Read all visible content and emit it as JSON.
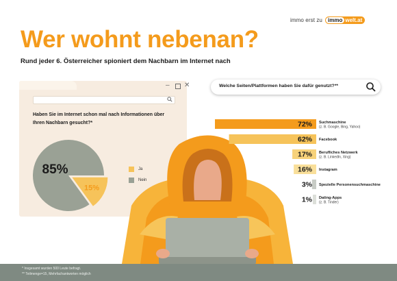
{
  "brand": {
    "prefix": "immo erst zu",
    "mark": "immo",
    "name": "welt.at"
  },
  "title": "Wer wohnt nebenan?",
  "subtitle": "Rund jeder 6. Österreicher spioniert dem Nachbarn im Internet nach",
  "browser": {
    "question": "Haben Sie im Internet schon mal nach Informationen über Ihren Nachbarn gesucht?*",
    "controls": {
      "minimize": "–",
      "close": "✕"
    },
    "search_icon": "search-icon"
  },
  "search": {
    "query": "Welche Seiten/Plattformen haben Sie dafür genutzt?**",
    "icon": "search-icon"
  },
  "footnotes": [
    "* Insgesamt wurden 500 Leute befragt.",
    "** Teilmenge=15, Mehrfachantworten möglich"
  ],
  "colors": {
    "accent": "#f49b1c",
    "accent_light": "#f6c35a",
    "grey": "#9aa195",
    "grey_dark": "#7f8a82",
    "skin": "#e9a98a"
  },
  "chart_data": [
    {
      "type": "pie",
      "labels": [
        "Ja",
        "Nein"
      ],
      "values": [
        15,
        85
      ],
      "value_labels": [
        "15%",
        "85%"
      ],
      "colors": [
        "#f6c35a",
        "#9aa195"
      ]
    },
    {
      "type": "bar",
      "orientation": "horizontal",
      "categories": [
        {
          "label": "Suchmaschine",
          "sub": "(z. B. Google, Bing, Yahoo)"
        },
        {
          "label": "Facebook",
          "sub": ""
        },
        {
          "label": "Berufliches Netzwerk",
          "sub": "(z. B. LinkedIn, Xing)"
        },
        {
          "label": "Instagram",
          "sub": ""
        },
        {
          "label": "Spezielle Personensuchmaschine",
          "sub": ""
        },
        {
          "label": "Dating-Apps",
          "sub": "(z. B. Tinder)"
        }
      ],
      "values": [
        72,
        62,
        17,
        16,
        3,
        1
      ],
      "value_labels": [
        "72%",
        "62%",
        "17%",
        "16%",
        "3%",
        "1%"
      ],
      "colors": [
        "#f49b1c",
        "#f6c35a",
        "#f7d27a",
        "#f9df9a",
        "#c8ccc6",
        "#dcdfd9"
      ]
    }
  ]
}
